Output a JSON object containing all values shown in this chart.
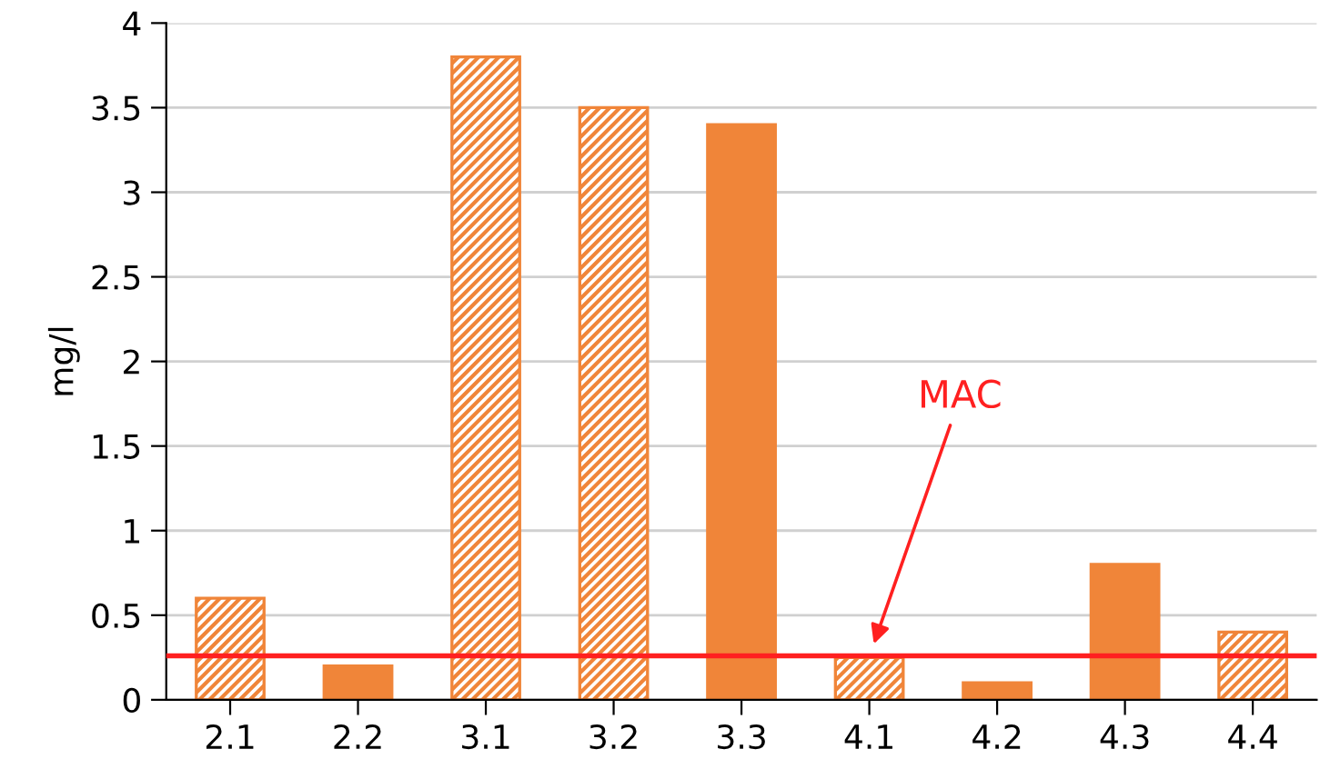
{
  "chart_data": {
    "type": "bar",
    "ylabel": "mg/l",
    "categories": [
      "2.1",
      "2.2",
      "3.1",
      "3.2",
      "3.3",
      "4.1",
      "4.2",
      "4.3",
      "4.4"
    ],
    "series": [
      {
        "color": "#f08539",
        "values": [
          null,
          0.2,
          null,
          null,
          3.4,
          null,
          0.1,
          0.8,
          null
        ]
      },
      {
        "color": "#f08539",
        "values": [
          0.6,
          null,
          3.8,
          3.5,
          null,
          0.25,
          null,
          null,
          0.4
        ]
      }
    ],
    "ylim": [
      0,
      4
    ],
    "yticks": [
      0,
      0.5,
      1,
      1.5,
      2,
      2.5,
      3,
      3.5,
      4
    ],
    "grid": "y",
    "legend": false,
    "ref_lines": [
      {
        "axis": "y",
        "value": 0.26,
        "label": "MAC",
        "color": "#ff2020"
      }
    ]
  }
}
